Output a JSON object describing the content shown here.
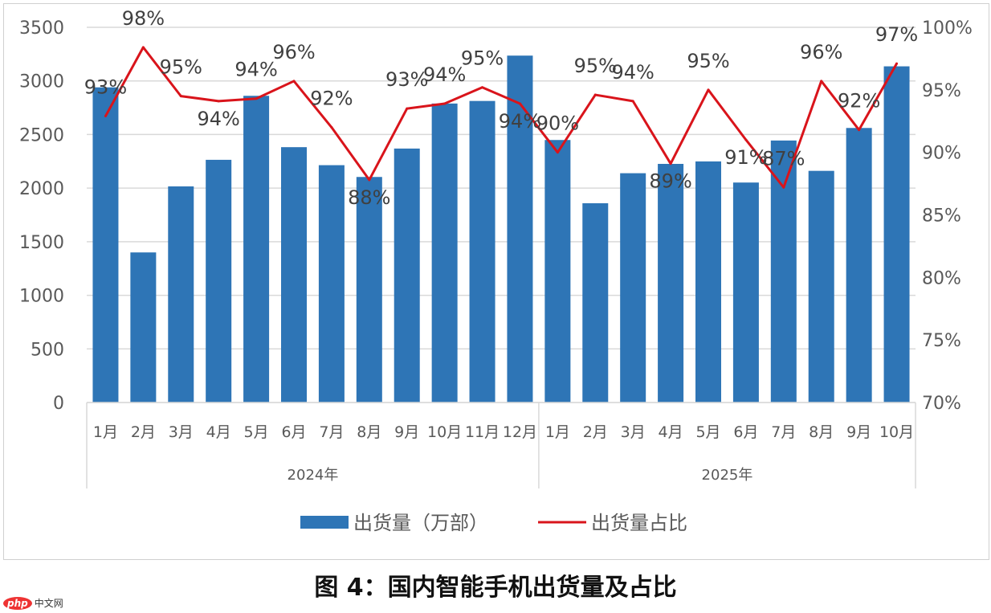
{
  "title": "图 4：国内智能手机出货量及占比",
  "logo": {
    "text": "php",
    "text2": "中文网"
  },
  "chart_data": {
    "type": "bar+line",
    "title": "",
    "categories": [
      "1月",
      "2月",
      "3月",
      "4月",
      "5月",
      "6月",
      "7月",
      "8月",
      "9月",
      "10月",
      "11月",
      "12月",
      "1月",
      "2月",
      "3月",
      "4月",
      "5月",
      "6月",
      "7月",
      "8月",
      "9月",
      "10月"
    ],
    "groups": [
      {
        "label": "2024年",
        "count": 12
      },
      {
        "label": "2025年",
        "count": 10
      }
    ],
    "y_left": {
      "ylim": [
        0,
        3500
      ],
      "ticks": [
        "0",
        "500",
        "1000",
        "1500",
        "2000",
        "2500",
        "3000",
        "3500"
      ]
    },
    "y_right": {
      "ylim": [
        70,
        100
      ],
      "ticks": [
        "70%",
        "75%",
        "80%",
        "85%",
        "90%",
        "95%",
        "100%"
      ]
    },
    "grid": true,
    "legend_position": "bottom",
    "series": [
      {
        "name": "出货量（万部）",
        "type": "bar",
        "axis": "left",
        "color": "#2e75b6",
        "values": [
          2940,
          1400,
          2016,
          2264,
          2861,
          2382,
          2214,
          2104,
          2369,
          2789,
          2813,
          3236,
          2449,
          1859,
          2139,
          2226,
          2249,
          2052,
          2444,
          2161,
          2561,
          3136
        ]
      },
      {
        "name": "出货量占比",
        "type": "line",
        "axis": "right",
        "color": "#d9141b",
        "values": [
          92.9,
          98.4,
          94.5,
          94.1,
          94.3,
          95.7,
          92.0,
          87.8,
          93.5,
          93.9,
          95.2,
          93.9,
          90.0,
          94.6,
          94.1,
          89.1,
          95.0,
          91.0,
          87.2,
          95.7,
          91.8,
          97.1
        ],
        "labels": [
          "93%",
          "98%",
          "95%",
          "94%",
          "94%",
          "96%",
          "92%",
          "88%",
          "93%",
          "94%",
          "95%",
          "94%",
          "90%",
          "95%",
          "94%",
          "89%",
          "95%",
          "91%",
          "87%",
          "96%",
          "92%",
          "97%"
        ]
      }
    ]
  }
}
